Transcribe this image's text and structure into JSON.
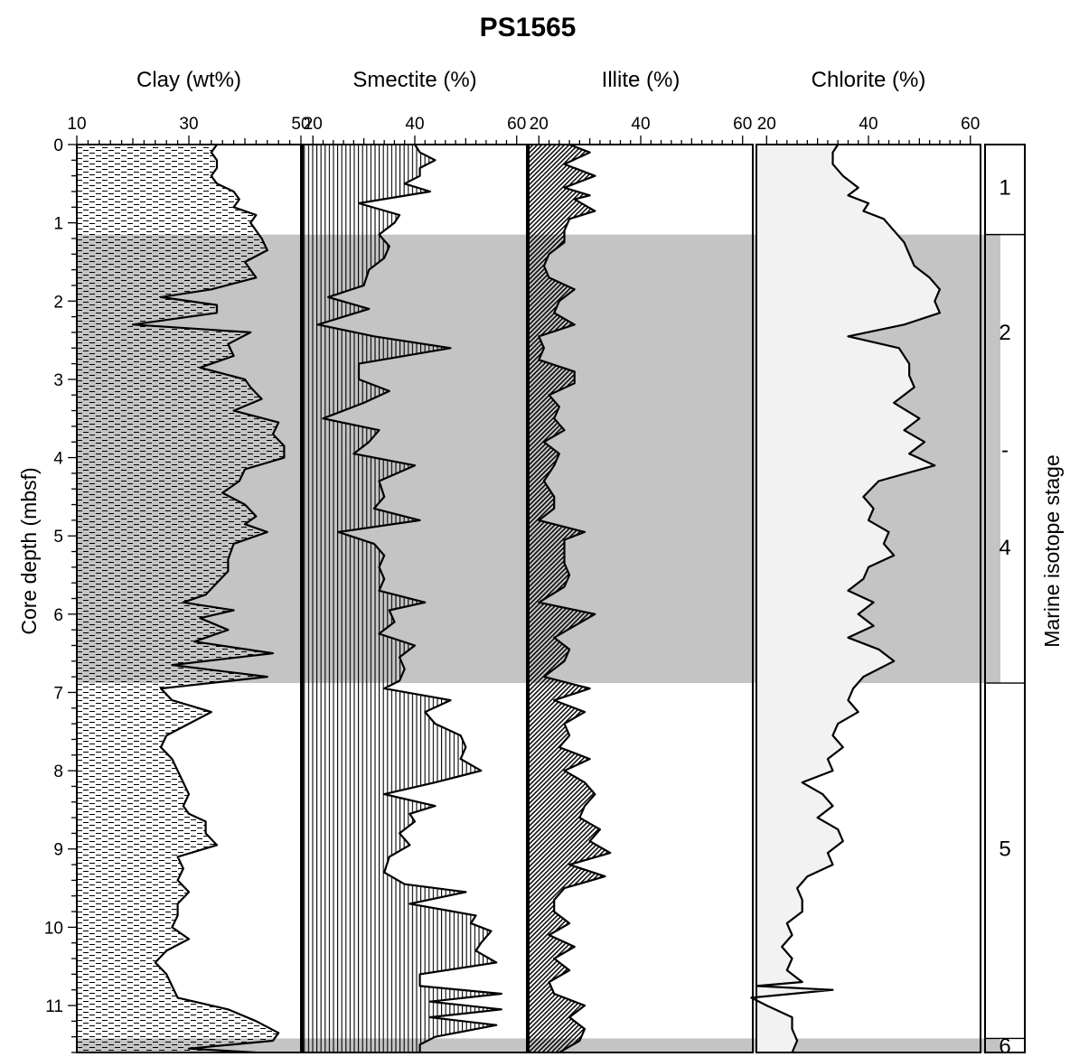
{
  "title": "PS1565",
  "y_axis": {
    "label": "Core depth (mbsf)",
    "range": [
      0,
      11.6
    ],
    "ticks": [
      "0",
      "1",
      "2",
      "3",
      "4",
      "5",
      "6",
      "7",
      "8",
      "9",
      "10",
      "11"
    ]
  },
  "stage_axis": {
    "label": "Marine isotope stage",
    "intervals": [
      {
        "label": "1",
        "from": 0,
        "to": 1.15,
        "shaded": false
      },
      {
        "label": "2",
        "from": 1.15,
        "to": 6.88,
        "shaded": true
      },
      {
        "label": "-",
        "from": 1.15,
        "to": 6.88,
        "shaded": true
      },
      {
        "label": "4",
        "from": 1.15,
        "to": 6.88,
        "shaded": true
      },
      {
        "label": "5",
        "from": 6.88,
        "to": 11.42,
        "shaded": false
      },
      {
        "label": "6",
        "from": 11.42,
        "to": 11.6,
        "shaded": true
      }
    ],
    "label_depths": [
      0.55,
      2.4,
      3.9,
      5.15,
      9.0,
      11.52
    ]
  },
  "shaded_bands": [
    [
      1.15,
      6.88
    ],
    [
      11.42,
      11.6
    ]
  ],
  "colors": {
    "band": "#c4c4c4",
    "chlorite_fill": "#f2f2f2",
    "line": "#000000"
  },
  "chart_data": [
    {
      "type": "area",
      "title": "Clay (wt%)",
      "xlim": [
        10,
        50
      ],
      "xticks": [
        "10",
        "30",
        "50"
      ],
      "fill_pattern": "dashes",
      "depth": [
        0,
        0.1,
        0.2,
        0.3,
        0.4,
        0.5,
        0.6,
        0.7,
        0.8,
        0.9,
        1.0,
        1.1,
        1.2,
        1.35,
        1.5,
        1.7,
        1.85,
        1.95,
        2.05,
        2.15,
        2.3,
        2.4,
        2.55,
        2.7,
        2.85,
        3.0,
        3.1,
        3.25,
        3.4,
        3.55,
        3.7,
        3.85,
        4.0,
        4.15,
        4.3,
        4.45,
        4.6,
        4.75,
        4.85,
        4.95,
        5.1,
        5.3,
        5.45,
        5.6,
        5.75,
        5.85,
        5.95,
        6.05,
        6.2,
        6.35,
        6.5,
        6.65,
        6.8,
        6.95,
        7.1,
        7.25,
        7.4,
        7.55,
        7.7,
        7.85,
        8.0,
        8.15,
        8.3,
        8.45,
        8.55,
        8.65,
        8.8,
        8.95,
        9.1,
        9.25,
        9.4,
        9.55,
        9.7,
        9.85,
        10.0,
        10.15,
        10.3,
        10.45,
        10.6,
        10.75,
        10.9,
        11.05,
        11.2,
        11.35,
        11.45,
        11.55,
        11.6
      ],
      "values": [
        35,
        34,
        35,
        35,
        34,
        35,
        38,
        39,
        38,
        42,
        41,
        42,
        43,
        44,
        40,
        42,
        34,
        25,
        35,
        35,
        20,
        41,
        37,
        38,
        32,
        40,
        41,
        43,
        38,
        46,
        45,
        47,
        47,
        40,
        39,
        36,
        40,
        42,
        40,
        44,
        38,
        37,
        37,
        35,
        33,
        29,
        38,
        32,
        37,
        31,
        45,
        27,
        44,
        25,
        27,
        34,
        30,
        26,
        25,
        27,
        28,
        29,
        30,
        29,
        30,
        33,
        33,
        35,
        28,
        29,
        28,
        30,
        28,
        28,
        27,
        30,
        26,
        24,
        26,
        27,
        28,
        37,
        42,
        46,
        45,
        30,
        42
      ]
    },
    {
      "type": "area",
      "title": "Smectite (%)",
      "xlim": [
        18,
        62
      ],
      "xticks": [
        "20",
        "40",
        "60"
      ],
      "fill_pattern": "vertical-lines",
      "depth": [
        0,
        0.1,
        0.2,
        0.3,
        0.4,
        0.5,
        0.6,
        0.75,
        0.9,
        1.0,
        1.15,
        1.3,
        1.45,
        1.6,
        1.8,
        1.95,
        2.1,
        2.3,
        2.45,
        2.6,
        2.8,
        3.0,
        3.15,
        3.3,
        3.5,
        3.65,
        3.8,
        3.95,
        4.1,
        4.3,
        4.5,
        4.65,
        4.8,
        4.95,
        5.1,
        5.25,
        5.4,
        5.55,
        5.7,
        5.85,
        5.95,
        6.1,
        6.25,
        6.4,
        6.55,
        6.7,
        6.85,
        6.95,
        7.1,
        7.25,
        7.4,
        7.55,
        7.7,
        7.85,
        8.0,
        8.15,
        8.3,
        8.45,
        8.55,
        8.65,
        8.8,
        8.95,
        9.1,
        9.3,
        9.45,
        9.55,
        9.7,
        9.85,
        9.95,
        10.05,
        10.2,
        10.3,
        10.45,
        10.6,
        10.75,
        10.85,
        10.95,
        11.05,
        11.15,
        11.25,
        11.4,
        11.5,
        11.6
      ],
      "values": [
        40,
        41,
        44,
        41,
        41,
        38,
        43,
        29,
        37,
        36,
        33,
        35,
        34,
        31,
        30,
        23,
        31,
        21,
        32,
        47,
        29,
        29,
        35,
        30,
        22,
        33,
        31,
        28,
        40,
        33,
        34,
        32,
        41,
        25,
        32,
        34,
        33,
        34,
        33,
        42,
        35,
        36,
        33,
        40,
        37,
        38,
        37,
        34,
        47,
        42,
        44,
        49,
        50,
        49,
        53,
        44,
        34,
        44,
        39,
        40,
        37,
        39,
        35,
        34,
        38,
        50,
        39,
        52,
        51,
        55,
        53,
        52,
        56,
        41,
        41,
        57,
        43,
        57,
        43,
        56,
        44,
        41,
        41
      ]
    },
    {
      "type": "area",
      "title": "Illite (%)",
      "xlim": [
        18,
        62
      ],
      "xticks": [
        "20",
        "40",
        "60"
      ],
      "fill_pattern": "diagonal-lines",
      "depth": [
        0,
        0.1,
        0.25,
        0.4,
        0.55,
        0.65,
        0.7,
        0.85,
        0.95,
        1.1,
        1.25,
        1.4,
        1.55,
        1.7,
        1.85,
        2.0,
        2.15,
        2.3,
        2.45,
        2.6,
        2.75,
        2.9,
        3.05,
        3.2,
        3.35,
        3.5,
        3.65,
        3.8,
        3.95,
        4.1,
        4.3,
        4.5,
        4.65,
        4.8,
        4.95,
        5.05,
        5.2,
        5.35,
        5.5,
        5.65,
        5.85,
        6.0,
        6.15,
        6.3,
        6.45,
        6.6,
        6.8,
        6.95,
        7.1,
        7.25,
        7.4,
        7.55,
        7.7,
        7.85,
        8.0,
        8.15,
        8.3,
        8.45,
        8.6,
        8.75,
        8.9,
        9.05,
        9.2,
        9.35,
        9.5,
        9.65,
        9.8,
        9.95,
        10.1,
        10.25,
        10.4,
        10.55,
        10.7,
        10.85,
        11.0,
        11.15,
        11.3,
        11.45,
        11.6
      ],
      "values": [
        26,
        30,
        25,
        31,
        25,
        30,
        27,
        31,
        26,
        25,
        25,
        22,
        21,
        22,
        27,
        24,
        23,
        27,
        20,
        21,
        20,
        27,
        27,
        22,
        24,
        23,
        25,
        21,
        24,
        23,
        21,
        23,
        23,
        20,
        29,
        25,
        25,
        25,
        26,
        25,
        20,
        31,
        27,
        23,
        26,
        25,
        21,
        30,
        23,
        29,
        25,
        26,
        24,
        30,
        25,
        29,
        31,
        29,
        28,
        32,
        30,
        34,
        26,
        33,
        25,
        23,
        23,
        26,
        22,
        27,
        23,
        26,
        22,
        23,
        29,
        26,
        29,
        28,
        24
      ]
    },
    {
      "type": "area",
      "title": "Chlorite (%)",
      "xlim": [
        18,
        62
      ],
      "xticks": [
        "20",
        "40",
        "60"
      ],
      "fill_pattern": "light-gray",
      "depth": [
        0,
        0.1,
        0.25,
        0.4,
        0.55,
        0.65,
        0.75,
        0.85,
        0.95,
        1.1,
        1.25,
        1.4,
        1.55,
        1.7,
        1.85,
        2.0,
        2.15,
        2.3,
        2.45,
        2.6,
        2.8,
        2.95,
        3.1,
        3.3,
        3.5,
        3.65,
        3.8,
        3.95,
        4.1,
        4.3,
        4.5,
        4.65,
        4.8,
        4.95,
        5.1,
        5.25,
        5.4,
        5.55,
        5.7,
        5.85,
        6.0,
        6.15,
        6.3,
        6.45,
        6.6,
        6.8,
        6.95,
        7.1,
        7.25,
        7.4,
        7.55,
        7.7,
        7.85,
        8.0,
        8.15,
        8.3,
        8.45,
        8.6,
        8.75,
        8.9,
        9.05,
        9.2,
        9.35,
        9.5,
        9.65,
        9.8,
        9.95,
        10.1,
        10.25,
        10.4,
        10.55,
        10.7,
        10.75,
        10.8,
        10.9,
        11.0,
        11.15,
        11.3,
        11.45,
        11.6
      ],
      "values": [
        34,
        33,
        33,
        35,
        38,
        36,
        40,
        39,
        43,
        45,
        47,
        48,
        49,
        52,
        54,
        53,
        54,
        47,
        36,
        46,
        48,
        48,
        49,
        45,
        50,
        47,
        51,
        48,
        53,
        42,
        39,
        41,
        40,
        44,
        43,
        45,
        40,
        39,
        36,
        41,
        38,
        41,
        36,
        42,
        45,
        39,
        37,
        36,
        38,
        34,
        33,
        35,
        32,
        33,
        27,
        31,
        33,
        30,
        34,
        35,
        32,
        33,
        28,
        26,
        27,
        27,
        24,
        25,
        23,
        25,
        24,
        27,
        18,
        33,
        17,
        20,
        25,
        25,
        26,
        25,
        35
      ]
    }
  ]
}
